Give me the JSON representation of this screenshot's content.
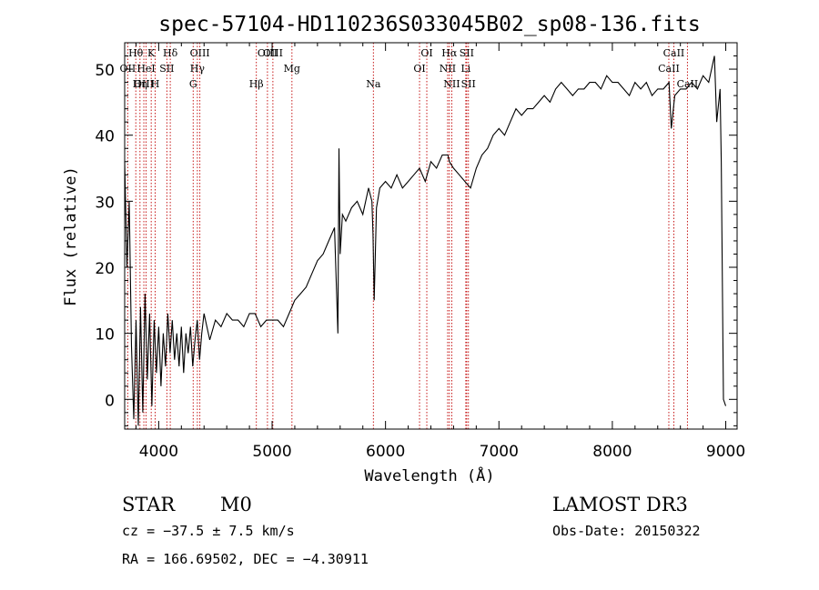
{
  "chart_data": {
    "type": "line",
    "title": "spec-57104-HD110236S033045B02_sp08-136.fits",
    "xlabel": "Wavelength (Å)",
    "ylabel": "Flux (relative)",
    "xlim": [
      3700,
      9100
    ],
    "ylim": [
      -4.5,
      54
    ],
    "x_ticks": [
      4000,
      5000,
      6000,
      7000,
      8000,
      9000
    ],
    "y_ticks": [
      0,
      10,
      20,
      30,
      40,
      50
    ],
    "series": [
      {
        "name": "spectrum",
        "x": [
          3700,
          3720,
          3740,
          3760,
          3780,
          3800,
          3820,
          3840,
          3860,
          3880,
          3900,
          3920,
          3940,
          3960,
          3980,
          4000,
          4020,
          4040,
          4060,
          4080,
          4100,
          4120,
          4140,
          4160,
          4180,
          4200,
          4220,
          4240,
          4260,
          4280,
          4300,
          4320,
          4340,
          4360,
          4380,
          4400,
          4450,
          4500,
          4550,
          4600,
          4650,
          4700,
          4750,
          4800,
          4850,
          4900,
          4950,
          5000,
          5050,
          5100,
          5150,
          5200,
          5250,
          5300,
          5350,
          5400,
          5450,
          5500,
          5550,
          5580,
          5590,
          5600,
          5620,
          5650,
          5700,
          5750,
          5800,
          5850,
          5880,
          5890,
          5900,
          5920,
          5950,
          6000,
          6050,
          6100,
          6150,
          6200,
          6250,
          6300,
          6350,
          6400,
          6450,
          6500,
          6550,
          6563,
          6600,
          6650,
          6700,
          6750,
          6800,
          6850,
          6900,
          6950,
          7000,
          7050,
          7100,
          7150,
          7200,
          7250,
          7300,
          7350,
          7400,
          7450,
          7500,
          7550,
          7600,
          7650,
          7700,
          7750,
          7800,
          7850,
          7900,
          7950,
          8000,
          8050,
          8100,
          8150,
          8200,
          8250,
          8300,
          8350,
          8400,
          8450,
          8500,
          8520,
          8550,
          8600,
          8650,
          8700,
          8750,
          8800,
          8850,
          8900,
          8920,
          8950,
          8960,
          8980,
          9000
        ],
        "y": [
          36,
          20,
          30,
          8,
          -3,
          12,
          -4,
          14,
          -2,
          16,
          3,
          13,
          -1,
          12,
          4,
          11,
          2,
          10,
          5,
          13,
          7,
          12,
          6,
          10,
          5,
          11,
          4,
          10,
          7,
          11,
          5,
          9,
          12,
          6,
          10,
          13,
          9,
          12,
          11,
          13,
          12,
          12,
          11,
          13,
          13,
          11,
          12,
          12,
          12,
          11,
          13,
          15,
          16,
          17,
          19,
          21,
          22,
          24,
          26,
          10,
          38,
          22,
          28,
          27,
          29,
          30,
          28,
          32,
          30,
          25,
          15,
          29,
          32,
          33,
          32,
          34,
          32,
          33,
          34,
          35,
          33,
          36,
          35,
          37,
          37,
          36,
          35,
          34,
          33,
          32,
          35,
          37,
          38,
          40,
          41,
          40,
          42,
          44,
          43,
          44,
          44,
          45,
          46,
          45,
          47,
          48,
          47,
          46,
          47,
          47,
          48,
          48,
          47,
          49,
          48,
          48,
          47,
          46,
          48,
          47,
          48,
          46,
          47,
          47,
          48,
          41,
          46,
          47,
          47,
          48,
          47,
          49,
          48,
          52,
          42,
          47,
          36,
          0,
          -1
        ]
      }
    ],
    "line_markers": [
      {
        "label": "Hθ",
        "x": 3798
      },
      {
        "label": "K",
        "x": 3934
      },
      {
        "label": "Hδ",
        "x": 4102
      },
      {
        "label": "OIII",
        "x": 4363
      },
      {
        "label": "OII",
        "x": 3727
      },
      {
        "label": "HeI",
        "x": 3889
      },
      {
        "label": "SII",
        "x": 4072
      },
      {
        "label": "Hγ",
        "x": 4341
      },
      {
        "label": "OIII",
        "x": 3869
      },
      {
        "label": "Hη",
        "x": 3835
      },
      {
        "label": "H",
        "x": 3969
      },
      {
        "label": "G",
        "x": 4304
      },
      {
        "label": "Hβ",
        "x": 4861
      },
      {
        "label": "OIII",
        "x": 5007
      },
      {
        "label": "OIII",
        "x": 4959
      },
      {
        "label": "Mg",
        "x": 5175
      },
      {
        "label": "Na",
        "x": 5893
      },
      {
        "label": "OI",
        "x": 6300
      },
      {
        "label": "OI",
        "x": 6364
      },
      {
        "label": "Hα",
        "x": 6563
      },
      {
        "label": "SII",
        "x": 6716
      },
      {
        "label": "NII",
        "x": 6548
      },
      {
        "label": "Li",
        "x": 6708
      },
      {
        "label": "NII",
        "x": 6584
      },
      {
        "label": "SII",
        "x": 6731
      },
      {
        "label": "CaII",
        "x": 8542
      },
      {
        "label": "CaII",
        "x": 8498
      },
      {
        "label": "CaII",
        "x": 8662
      }
    ]
  },
  "info": {
    "class_label": "STAR",
    "subclass": "M0",
    "survey": "LAMOST DR3",
    "redshift": "cz = −37.5 ± 7.5 km/s",
    "obs_date": "Obs-Date: 20150322",
    "coords": "RA = 166.69502, DEC =  −4.30911"
  },
  "colors": {
    "marker_line": "#c00000",
    "spectrum": "#000000"
  }
}
